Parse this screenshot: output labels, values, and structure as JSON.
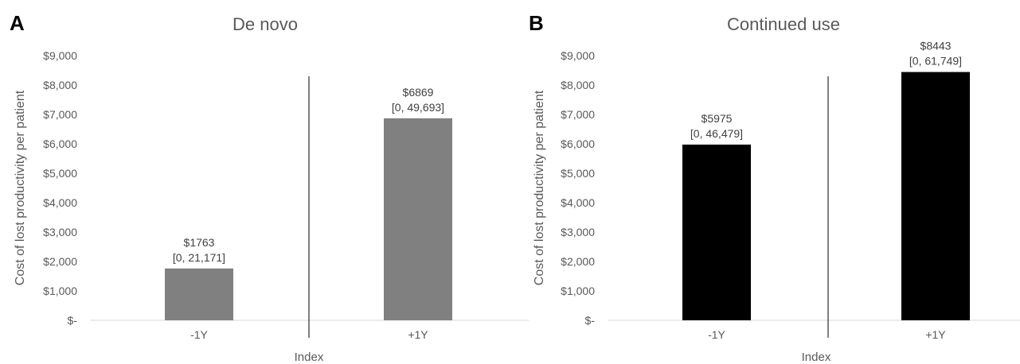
{
  "chart_data": [
    {
      "type": "bar",
      "panel_letter": "A",
      "title": "De novo",
      "xlabel": "Index",
      "ylabel": "Cost of lost productivity per patient",
      "categories": [
        "-1Y",
        "+1Y"
      ],
      "values": [
        1763,
        6869
      ],
      "value_labels": [
        "$1763",
        "$6869"
      ],
      "ci_labels": [
        "[0, 21,171]",
        "[0, 49,693]"
      ],
      "ylim": [
        0,
        9000
      ],
      "y_ticks": [
        0,
        1000,
        2000,
        3000,
        4000,
        5000,
        6000,
        7000,
        8000,
        9000
      ],
      "y_tick_labels": [
        "$-",
        "$1,000",
        "$2,000",
        "$3,000",
        "$4,000",
        "$5,000",
        "$6,000",
        "$7,000",
        "$8,000",
        "$9,000"
      ],
      "bar_color": "#808080",
      "grid": false
    },
    {
      "type": "bar",
      "panel_letter": "B",
      "title": "Continued use",
      "xlabel": "Index",
      "ylabel": "Cost of lost productivity per patient",
      "categories": [
        "-1Y",
        "+1Y"
      ],
      "values": [
        5975,
        8443
      ],
      "value_labels": [
        "$5975",
        "$8443"
      ],
      "ci_labels": [
        "[0, 46,479]",
        "[0, 61,749]"
      ],
      "ylim": [
        0,
        9000
      ],
      "y_ticks": [
        0,
        1000,
        2000,
        3000,
        4000,
        5000,
        6000,
        7000,
        8000,
        9000
      ],
      "y_tick_labels": [
        "$-",
        "$1,000",
        "$2,000",
        "$3,000",
        "$4,000",
        "$5,000",
        "$6,000",
        "$7,000",
        "$8,000",
        "$9,000"
      ],
      "bar_color": "#000000",
      "grid": false
    }
  ]
}
